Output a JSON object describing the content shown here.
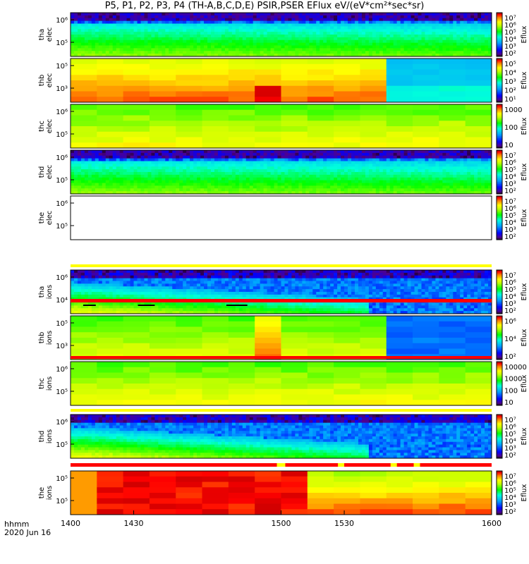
{
  "title": "P5, P1, P2, P3, P4 (TH-A,B,C,D,E) PSIR,PSER EFlux eV/(eV*cm²*sec*sr)",
  "footer": {
    "line1": "hhmm",
    "line2": "2020 Jun 16"
  },
  "colors": {
    "bar_yellow": "#ffff00",
    "bar_red": "#ff0000",
    "bar_black": "#000000"
  },
  "chart_data": {
    "type": "heatmap",
    "x_ticks": [
      "1400",
      "1430",
      "1500",
      "1530",
      "1600"
    ],
    "x_tick_values": [
      1400,
      1430,
      1500,
      1530,
      1600
    ],
    "xlim": [
      1400,
      1600
    ],
    "panels": [
      {
        "id": "tha-elec",
        "label": [
          "tha",
          "elec"
        ],
        "yticks": [
          "10⁶",
          "10⁵"
        ],
        "cb_ticks": [
          "10⁷",
          "10⁶",
          "10⁵",
          "10⁴",
          "10³",
          "10²"
        ],
        "cb_label": "Eflux",
        "pattern": "elec_dense"
      },
      {
        "id": "thb-elec",
        "label": [
          "thb",
          "elec"
        ],
        "yticks": [
          "10⁵",
          "10³"
        ],
        "cb_ticks": [
          "10⁵",
          "10⁴",
          "10³",
          "10²",
          "10¹"
        ],
        "cb_label": "Eflux",
        "pattern": "blocky_warm"
      },
      {
        "id": "thc-elec",
        "label": [
          "thc",
          "elec"
        ],
        "yticks": [
          "10⁶",
          "10⁵"
        ],
        "cb_ticks": [
          "1000",
          "100",
          "10"
        ],
        "cb_label": "Eflux",
        "pattern": "green_yellow"
      },
      {
        "id": "thd-elec",
        "label": [
          "thd",
          "elec"
        ],
        "yticks": [
          "10⁶",
          "10⁵"
        ],
        "cb_ticks": [
          "10⁷",
          "10⁶",
          "10⁵",
          "10⁴",
          "10³",
          "10²"
        ],
        "cb_label": "Eflux",
        "pattern": "elec_dense"
      },
      {
        "id": "the-elec",
        "label": [
          "the",
          "elec"
        ],
        "yticks": [
          "10⁶",
          "10⁵"
        ],
        "cb_ticks": [
          "10⁷",
          "10⁶",
          "10⁵",
          "10⁴",
          "10³",
          "10²"
        ],
        "cb_label": "Eflux",
        "pattern": "empty"
      },
      {
        "id": "tha-ions",
        "label": [
          "tha",
          "ions"
        ],
        "yticks": [
          "10⁶",
          "10⁴"
        ],
        "cb_ticks": [
          "10⁷",
          "10⁶",
          "10⁵",
          "10⁴",
          "10³",
          "10²"
        ],
        "cb_label": "Eflux",
        "pattern": "ions_dense"
      },
      {
        "id": "thb-ions",
        "label": [
          "thb",
          "ions"
        ],
        "yticks": [
          "10⁵",
          "10³"
        ],
        "cb_ticks": [
          "10⁶",
          "10⁴",
          "10²"
        ],
        "cb_label": "Eflux",
        "pattern": "blocky_green"
      },
      {
        "id": "thc-ions",
        "label": [
          "thc",
          "ions"
        ],
        "yticks": [
          "10⁶",
          "10⁵"
        ],
        "cb_ticks": [
          "10000",
          "1000",
          "100",
          "10"
        ],
        "cb_label": "Eflux",
        "pattern": "green_yellow"
      },
      {
        "id": "thd-ions",
        "label": [
          "thd",
          "ions"
        ],
        "yticks": [
          "10⁶",
          "10⁵"
        ],
        "cb_ticks": [
          "10⁷",
          "10⁶",
          "10⁵",
          "10⁴",
          "10³",
          "10²"
        ],
        "cb_label": "Eflux",
        "pattern": "ions_dense"
      },
      {
        "id": "the-ions",
        "label": [
          "the",
          "ions"
        ],
        "yticks": [
          "10⁵",
          "10⁵"
        ],
        "cb_ticks": [
          "10⁷",
          "10⁶",
          "10⁵",
          "10⁴",
          "10³",
          "10²"
        ],
        "cb_label": "Eflux",
        "pattern": "red_warm"
      }
    ]
  }
}
